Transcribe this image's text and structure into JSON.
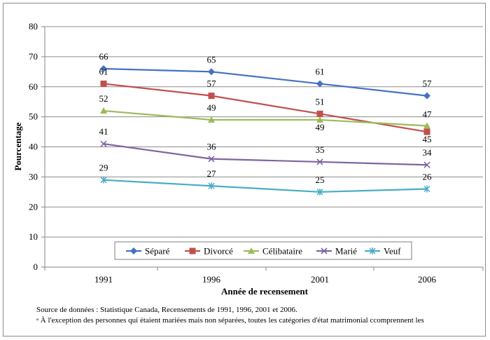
{
  "chart_data": {
    "type": "line",
    "categories": [
      "1991",
      "1996",
      "2001",
      "2006"
    ],
    "series": [
      {
        "name": "Séparé",
        "values": [
          66,
          65,
          61,
          57
        ],
        "color": "#4472c4",
        "marker": "diamond"
      },
      {
        "name": "Divorcé",
        "values": [
          61,
          57,
          51,
          45
        ],
        "color": "#c0504d",
        "marker": "square"
      },
      {
        "name": "Célibataire",
        "values": [
          52,
          49,
          49,
          47
        ],
        "color": "#9bbb59",
        "marker": "triangle"
      },
      {
        "name": "Marié",
        "values": [
          41,
          36,
          35,
          34
        ],
        "color": "#8064a2",
        "marker": "x"
      },
      {
        "name": "Veuf",
        "values": [
          29,
          27,
          25,
          26
        ],
        "color": "#4bacc6",
        "marker": "star"
      }
    ],
    "xlabel": "Année de recensement",
    "ylabel": "Pourcentage",
    "ylim": [
      0,
      80
    ],
    "yticks": [
      0,
      10,
      20,
      30,
      40,
      50,
      60,
      70,
      80
    ],
    "grid": true,
    "legend_position": "bottom-inside"
  },
  "notes": {
    "source": "Source de données : Statistique Canada, Recensements de 1991, 1996, 2001 et 2006.",
    "footnote": "ᵃ À l'exception des personnes qui étaient mariées mais non séparées, toutes les catégories d'état matrimonial ccomprennent les"
  }
}
